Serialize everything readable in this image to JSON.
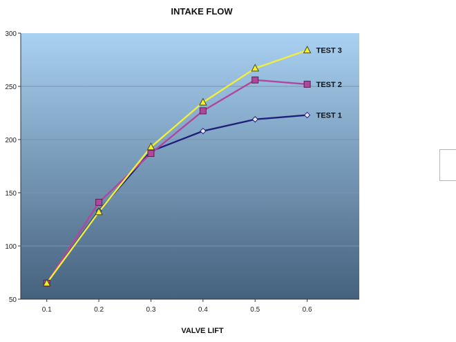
{
  "chart_data": {
    "type": "line",
    "title": "INTAKE FLOW",
    "xlabel": "VALVE LIFT",
    "ylabel": "",
    "x_ticks": [
      "0.1",
      "0.2",
      "0.3",
      "0.4",
      "0.5",
      "0.6"
    ],
    "ylim": [
      50,
      300
    ],
    "y_ticks": [
      "50",
      "100",
      "150",
      "200",
      "250",
      "300"
    ],
    "x": [
      0.1,
      0.2,
      0.3,
      0.4,
      0.5,
      0.6
    ],
    "grid": true,
    "series": [
      {
        "name": "TEST 1",
        "values": [
          65,
          133,
          189,
          208,
          219,
          223
        ],
        "color": "#1f1f7a",
        "marker": "diamond"
      },
      {
        "name": "TEST 2",
        "values": [
          65,
          141,
          187,
          227,
          256,
          252
        ],
        "color": "#b0479e",
        "marker": "square"
      },
      {
        "name": "TEST 3",
        "values": [
          65,
          132,
          193,
          235,
          267,
          284
        ],
        "color": "#f2ee3a",
        "marker": "triangle"
      }
    ],
    "plot_background": [
      "#a9d1f2",
      "#45617e"
    ]
  }
}
